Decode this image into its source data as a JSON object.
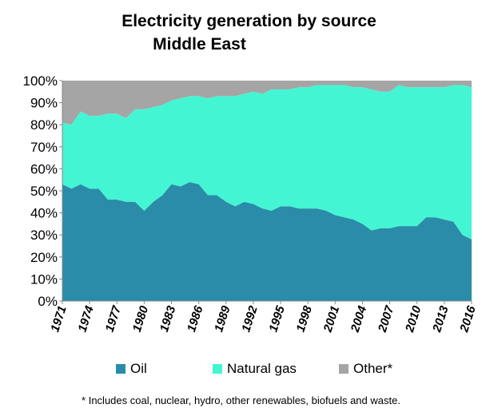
{
  "chart_data": {
    "type": "area",
    "stacked": true,
    "normalized_percent": true,
    "title": "Electricity generation by source",
    "subtitle": "Middle East",
    "x": [
      1971,
      1972,
      1973,
      1974,
      1975,
      1976,
      1977,
      1978,
      1979,
      1980,
      1981,
      1982,
      1983,
      1984,
      1985,
      1986,
      1987,
      1988,
      1989,
      1990,
      1991,
      1992,
      1993,
      1994,
      1995,
      1996,
      1997,
      1998,
      1999,
      2000,
      2001,
      2002,
      2003,
      2004,
      2005,
      2006,
      2007,
      2008,
      2009,
      2010,
      2011,
      2012,
      2013,
      2014,
      2015,
      2016
    ],
    "x_tick_labels": [
      "1971",
      "1974",
      "1977",
      "1980",
      "1983",
      "1986",
      "1989",
      "1992",
      "1995",
      "1998",
      "2001",
      "2004",
      "2007",
      "2010",
      "2013",
      "2016"
    ],
    "y_tick_labels": [
      "0%",
      "10%",
      "20%",
      "30%",
      "40%",
      "50%",
      "60%",
      "70%",
      "80%",
      "90%",
      "100%"
    ],
    "ylim": [
      0,
      100
    ],
    "grid": false,
    "legend_position": "bottom",
    "series": [
      {
        "name": "Oil",
        "color": "#2A8CA8",
        "values": [
          53,
          51,
          53,
          51,
          51,
          46,
          46,
          45,
          45,
          41,
          45,
          48,
          53,
          52,
          54,
          53,
          48,
          48,
          45,
          43,
          45,
          44,
          42,
          41,
          43,
          43,
          42,
          42,
          42,
          41,
          39,
          38,
          37,
          35,
          32,
          33,
          33,
          34,
          34,
          34,
          38,
          38,
          37,
          36,
          30,
          28
        ]
      },
      {
        "name": "Natural gas",
        "color": "#44F5D3",
        "values": [
          28,
          29,
          33,
          33,
          33,
          39,
          39,
          38,
          42,
          46,
          43,
          41,
          38,
          40,
          39,
          40,
          44,
          45,
          48,
          50,
          49,
          51,
          52,
          55,
          53,
          53,
          55,
          55,
          56,
          57,
          59,
          60,
          60,
          62,
          64,
          62,
          62,
          64,
          63,
          63,
          59,
          59,
          60,
          62,
          68,
          69
        ]
      },
      {
        "name": "Other*",
        "color": "#A6A5A6",
        "values": [
          19,
          20,
          14,
          16,
          16,
          15,
          15,
          17,
          13,
          13,
          12,
          11,
          9,
          8,
          7,
          7,
          8,
          7,
          7,
          7,
          6,
          5,
          6,
          4,
          4,
          4,
          3,
          3,
          2,
          2,
          2,
          2,
          3,
          3,
          4,
          5,
          5,
          2,
          3,
          3,
          3,
          3,
          3,
          2,
          2,
          3
        ]
      }
    ]
  },
  "legend": {
    "oil": "Oil",
    "gas": "Natural gas",
    "other": "Other*",
    "oil_color": "#2A8CA8",
    "gas_color": "#44F5D3",
    "other_color": "#A6A5A6"
  },
  "footnote": "* Includes coal, nuclear, hydro, other renewables, biofuels and waste."
}
